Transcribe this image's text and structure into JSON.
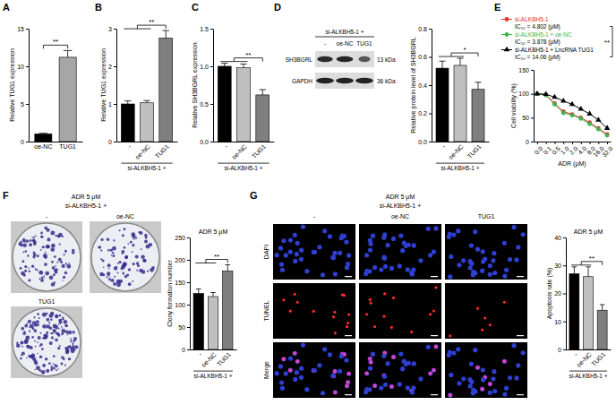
{
  "chart_data": [
    {
      "type": "bar",
      "ylabel": "Relative TUG1 expression",
      "categories": [
        "oe-NC",
        "TUG1"
      ],
      "values": [
        1.0,
        11.2
      ],
      "errors": [
        0.1,
        0.9
      ],
      "colors": [
        "#000000",
        "#a6a6a6"
      ],
      "ylim": [
        0,
        15
      ],
      "yticks": [
        0,
        5,
        10,
        15
      ],
      "annotations": [
        "**"
      ]
    },
    {
      "type": "bar",
      "ylabel": "Relative TUG1 expression",
      "xlabel": "si-ALKBH5-1 +",
      "categories": [
        "-",
        "oe-NC",
        "TUG1"
      ],
      "values": [
        1.0,
        1.03,
        2.75
      ],
      "errors": [
        0.08,
        0.06,
        0.2
      ],
      "colors": [
        "#000000",
        "#bfbfbf",
        "#7f7f7f"
      ],
      "ylim": [
        0,
        3
      ],
      "yticks": [
        0,
        1,
        2,
        3
      ],
      "annotations": [
        "**"
      ]
    },
    {
      "type": "bar",
      "ylabel": "Relative SH3BGRL expression",
      "xlabel": "si-ALKBH5-1 +",
      "categories": [
        "-",
        "oe-NC",
        "TUG1"
      ],
      "values": [
        1.0,
        0.98,
        0.62
      ],
      "errors": [
        0.04,
        0.05,
        0.07
      ],
      "colors": [
        "#000000",
        "#bfbfbf",
        "#7f7f7f"
      ],
      "ylim": [
        0,
        1.5
      ],
      "yticks": [
        {
          "value": 0,
          "label": "0.0"
        },
        0.5,
        {
          "value": 1,
          "label": "1.0"
        },
        1.5
      ],
      "annotations": [
        "**"
      ]
    },
    {
      "type": "bar",
      "ylabel": "Relative protein level of SH3BGRL",
      "xlabel": "si-ALKBH5-1 +",
      "categories": [
        "-",
        "oe-NC",
        "TUG1"
      ],
      "values": [
        0.52,
        0.54,
        0.37
      ],
      "errors": [
        0.05,
        0.05,
        0.05
      ],
      "colors": [
        "#000000",
        "#bfbfbf",
        "#7f7f7f"
      ],
      "ylim": [
        0,
        0.8
      ],
      "yticks": [
        {
          "value": 0,
          "label": "0.0"
        },
        0.2,
        0.4,
        0.6,
        0.8
      ],
      "annotations": [
        "*"
      ]
    },
    {
      "type": "line",
      "xlabel": "ADR (μM)",
      "ylabel": "Cell viability (%)",
      "categories": [
        "0.0",
        "0.1",
        "0.5",
        "1.0",
        "2.0",
        "4.0",
        "8.0",
        "16.0",
        "32.0"
      ],
      "series": [
        {
          "name": "si-ALKBH5-1",
          "color": "#e8312f",
          "marker": "circle",
          "values": [
            100,
            98,
            80,
            63,
            57,
            50,
            40,
            28,
            15
          ]
        },
        {
          "name": "si-ALKBH5-1 + oe-NC",
          "color": "#3cb44b",
          "marker": "circle",
          "values": [
            100,
            97,
            78,
            60,
            55,
            48,
            37,
            26,
            13
          ]
        },
        {
          "name": "si-ALKBH5-1 + LncRNA TUG1",
          "color": "#000000",
          "marker": "triangle",
          "values": [
            100,
            99,
            93,
            85,
            78,
            68,
            58,
            45,
            28
          ]
        }
      ],
      "ylim": [
        0,
        150
      ],
      "yticks": [
        0,
        50,
        100,
        150
      ],
      "legend": "top",
      "annotations": [
        "IC₅₀ = 4.802 (μM)",
        "IC₅₀ = 3.878 (μM)",
        "IC₅₀ = 14.06 (μM)",
        "**"
      ]
    },
    {
      "type": "bar",
      "title": "ADR 5 μM",
      "ylabel": "Clony formation number",
      "xlabel": "si-ALKBH5-1 +",
      "categories": [
        "-",
        "oe-NC",
        "TUG1"
      ],
      "values": [
        125,
        118,
        175
      ],
      "errors": [
        10,
        9,
        14
      ],
      "colors": [
        "#000000",
        "#bfbfbf",
        "#7f7f7f"
      ],
      "ylim": [
        0,
        250
      ],
      "yticks": [
        0,
        50,
        100,
        150,
        200,
        250
      ],
      "annotations": [
        "**"
      ]
    },
    {
      "type": "bar",
      "title": "ADR 5 μM",
      "ylabel": "Apoptosis rate (%)",
      "xlabel": "si-ALKBH5-1 +",
      "categories": [
        "-",
        "oe-NC",
        "TUG1"
      ],
      "values": [
        27,
        26,
        14
      ],
      "errors": [
        2.5,
        3.5,
        2
      ],
      "colors": [
        "#000000",
        "#bfbfbf",
        "#7f7f7f"
      ],
      "ylim": [
        0,
        40
      ],
      "yticks": [
        0,
        10,
        20,
        30,
        40
      ],
      "annotations": [
        "**"
      ]
    }
  ],
  "figure": {
    "panel_letters": [
      "A",
      "B",
      "C",
      "D",
      "E",
      "F",
      "G"
    ],
    "blot": {
      "header": "si-ALKBH5-1 +",
      "lanes": [
        "-",
        "oe-NC",
        "TUG1"
      ],
      "bands": [
        {
          "name": "SH3BGRL",
          "size": "13 kDa"
        },
        {
          "name": "GAPDH",
          "size": "36 kDa"
        }
      ]
    },
    "colony": {
      "header": "ADR 5 μM",
      "group": "si-ALKBH5-1 +",
      "plates": [
        "-",
        "oe-NC",
        "TUG1"
      ]
    },
    "tunel": {
      "header": "ADR 5 μM",
      "group": "si-ALKBH5-1 +",
      "columns": [
        "-",
        "oe-NC",
        "TUG1"
      ],
      "rows": [
        "DAPI",
        "TUNEL",
        "Merge"
      ]
    }
  }
}
